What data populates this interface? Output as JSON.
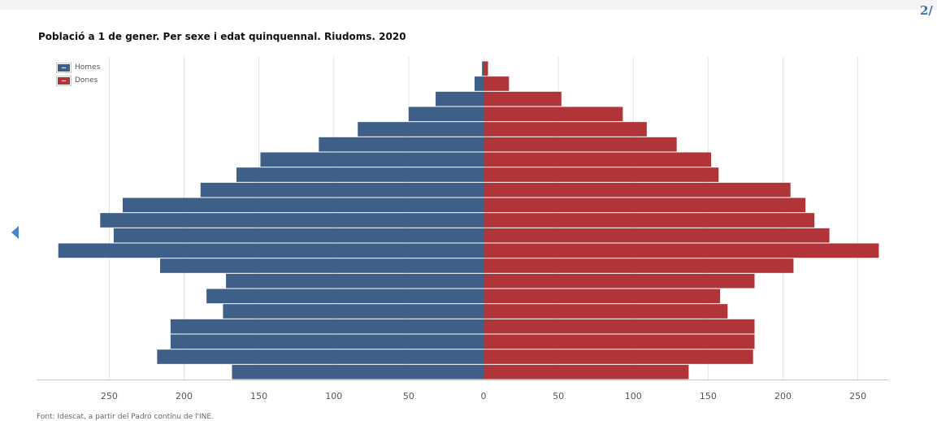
{
  "page_indicator": "2/",
  "source_note": "Font: Idescat, a partir del Padró continu de l'INE.",
  "colors": {
    "homes": "#3e5f88",
    "dones": "#b13438",
    "grid": "#e3e3e3",
    "axis": "#c8c8c8"
  },
  "chart_data": {
    "type": "bar",
    "orientation": "horizontal",
    "title": "Població a 1 de gener. Per sexe i edat quinquennal. Riudoms. 2020",
    "xlim": [
      -290,
      270
    ],
    "x_ticks": [
      -250,
      -200,
      -150,
      -100,
      -50,
      0,
      50,
      100,
      150,
      200,
      250
    ],
    "x_tick_labels": [
      "250",
      "200",
      "150",
      "100",
      "50",
      "0",
      "50",
      "100",
      "150",
      "200",
      "250"
    ],
    "legend": {
      "placement": "top-left",
      "entries": [
        "Homes",
        "Dones"
      ]
    },
    "series": [
      {
        "name": "Homes",
        "values": [
          168,
          218,
          209,
          209,
          174,
          185,
          172,
          216,
          284,
          247,
          256,
          241,
          189,
          165,
          149,
          110,
          84,
          50,
          32,
          6,
          1
        ]
      },
      {
        "name": "Dones",
        "values": [
          137,
          180,
          181,
          181,
          163,
          158,
          181,
          207,
          264,
          231,
          221,
          215,
          205,
          157,
          152,
          129,
          109,
          93,
          52,
          17,
          3
        ]
      }
    ]
  }
}
